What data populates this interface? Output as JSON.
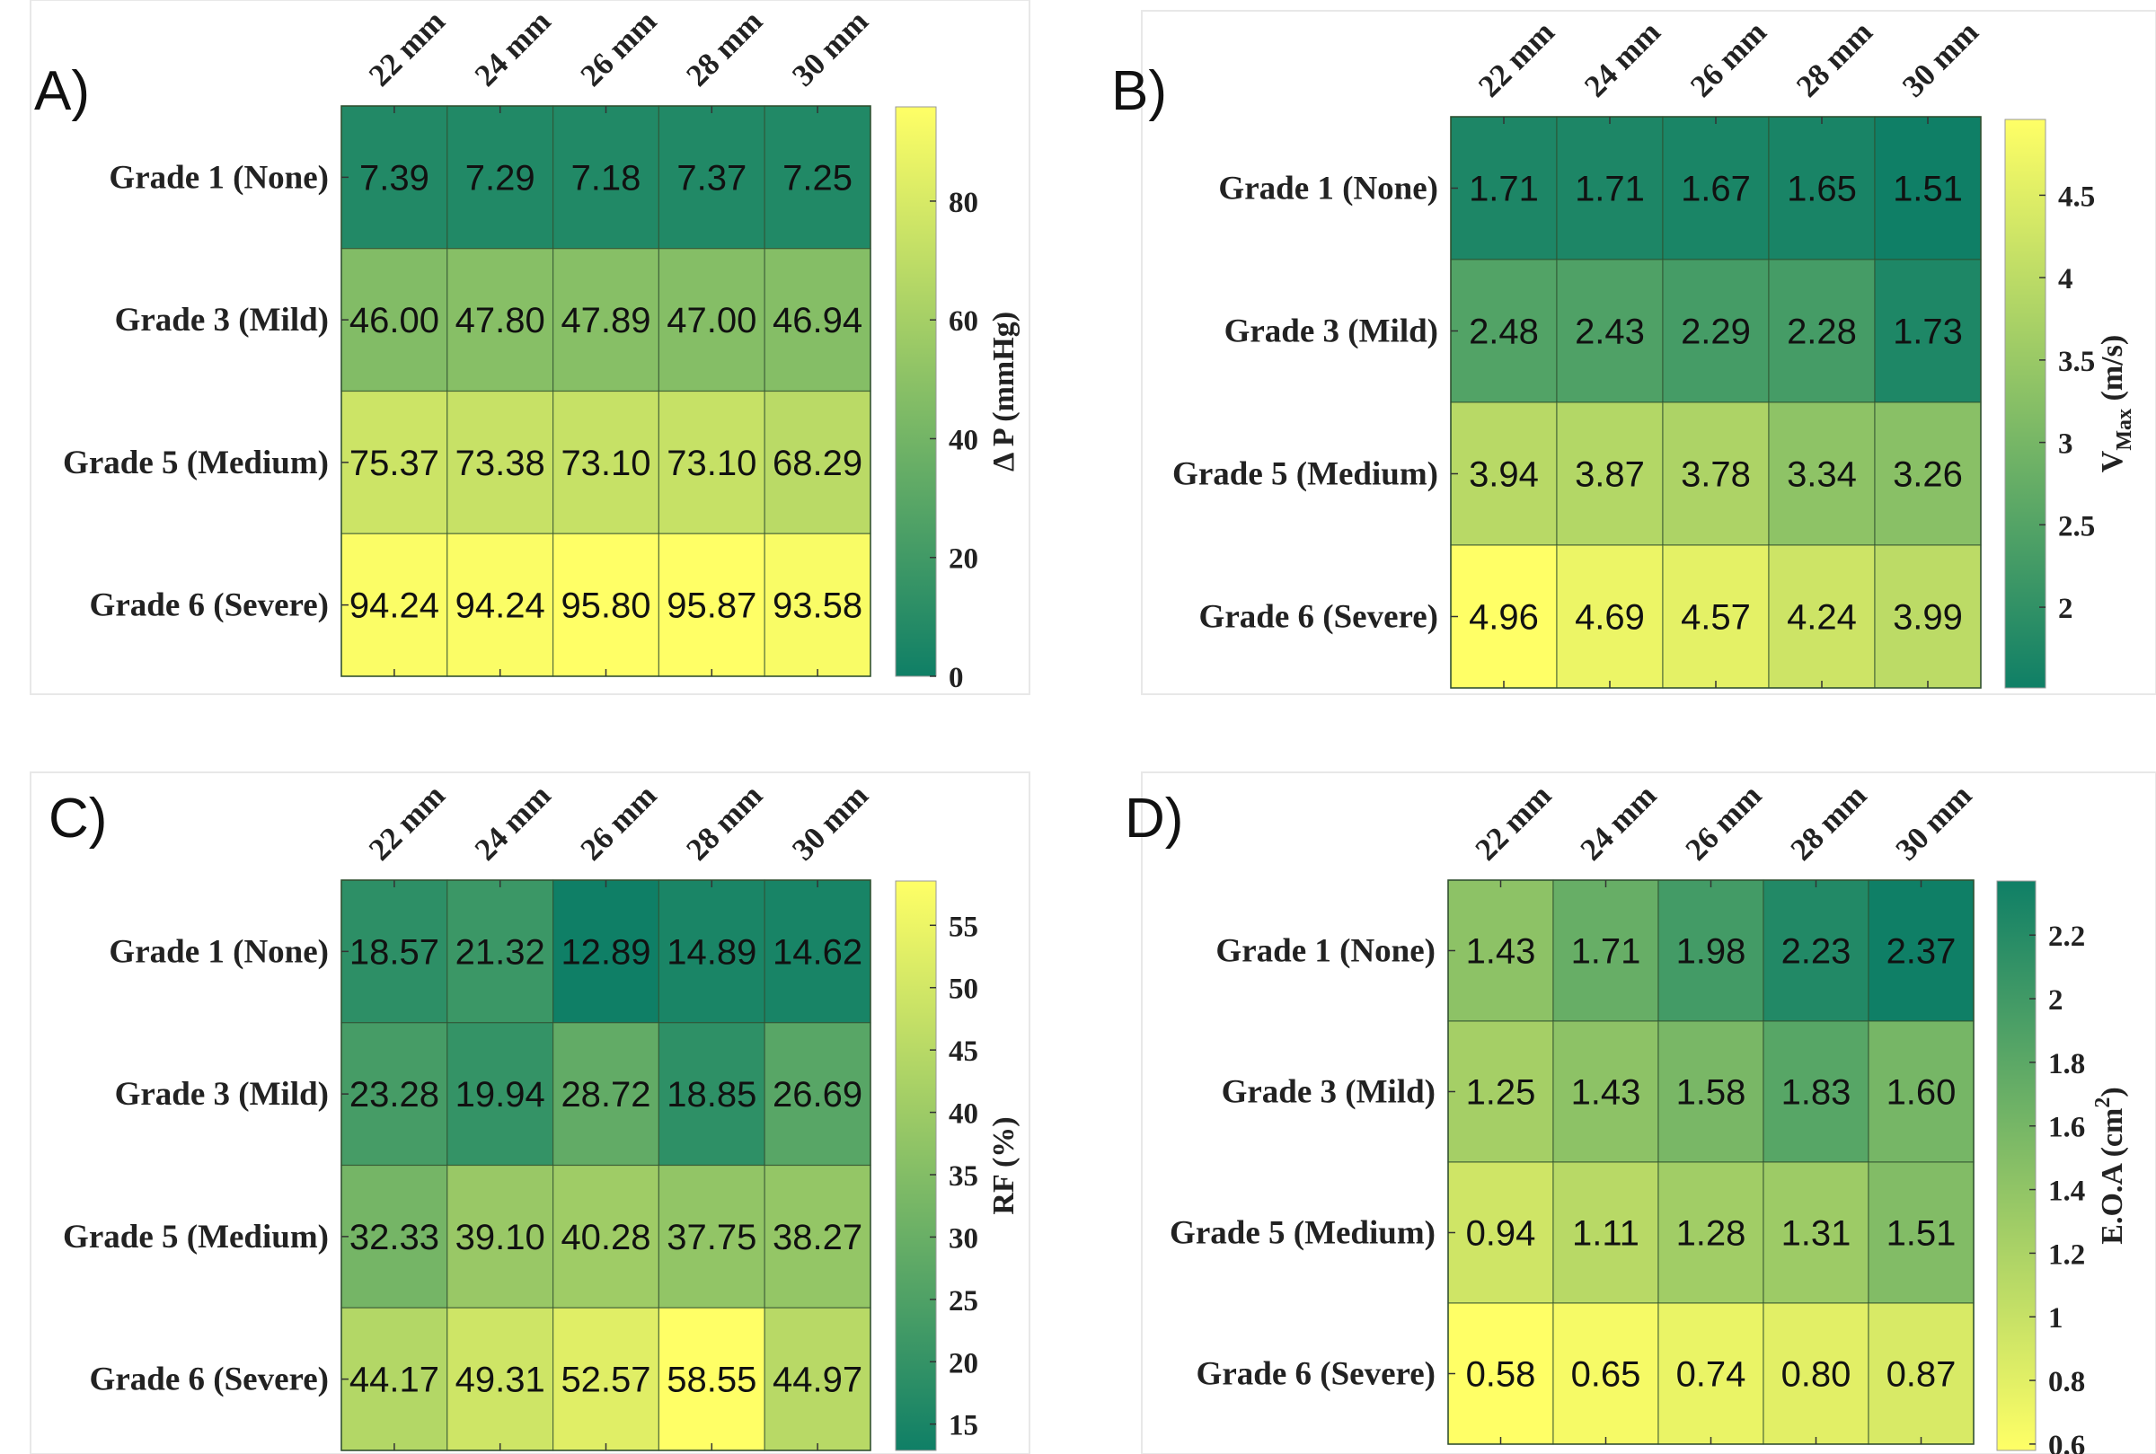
{
  "colors": {
    "low_green": "#0f7f66",
    "high_yellow": "#ffff66",
    "grid": "#3a5a3a"
  },
  "chart_data": [
    {
      "type": "heatmap",
      "panel_label": "A)",
      "columns": [
        "22 mm",
        "24 mm",
        "26 mm",
        "28 mm",
        "30 mm"
      ],
      "rows": [
        "Grade 1 (None)",
        "Grade 3 (Mild)",
        "Grade 5 (Medium)",
        "Grade 6 (Severe)"
      ],
      "values": [
        [
          "7.39",
          "7.29",
          "7.18",
          "7.37",
          "7.25"
        ],
        [
          "46.00",
          "47.80",
          "47.89",
          "47.00",
          "46.94"
        ],
        [
          "75.37",
          "73.38",
          "73.10",
          "73.10",
          "68.29"
        ],
        [
          "94.24",
          "94.24",
          "95.80",
          "95.87",
          "93.58"
        ]
      ],
      "colorbar": {
        "label": [
          "Δ P (mmHg)"
        ],
        "ticks": [
          "0",
          "20",
          "40",
          "60",
          "80"
        ],
        "range": [
          0,
          95.87
        ],
        "colormap": "summer (low green → high yellow)"
      }
    },
    {
      "type": "heatmap",
      "panel_label": "B)",
      "columns": [
        "22 mm",
        "24 mm",
        "26 mm",
        "28 mm",
        "30 mm"
      ],
      "rows": [
        "Grade 1 (None)",
        "Grade 3 (Mild)",
        "Grade 5 (Medium)",
        "Grade 6 (Severe)"
      ],
      "values": [
        [
          "1.71",
          "1.71",
          "1.67",
          "1.65",
          "1.51"
        ],
        [
          "2.48",
          "2.43",
          "2.29",
          "2.28",
          "1.73"
        ],
        [
          "3.94",
          "3.87",
          "3.78",
          "3.34",
          "3.26"
        ],
        [
          "4.96",
          "4.69",
          "4.57",
          "4.24",
          "3.99"
        ]
      ],
      "colorbar": {
        "label": [
          "V",
          "Max",
          " (m/s)"
        ],
        "ticks": [
          "2",
          "2.5",
          "3",
          "3.5",
          "4",
          "4.5"
        ],
        "range": [
          1.51,
          4.96
        ],
        "colormap": "summer (low green → high yellow)"
      }
    },
    {
      "type": "heatmap",
      "panel_label": "C)",
      "columns": [
        "22 mm",
        "24 mm",
        "26 mm",
        "28 mm",
        "30 mm"
      ],
      "rows": [
        "Grade 1 (None)",
        "Grade 3 (Mild)",
        "Grade 5 (Medium)",
        "Grade 6 (Severe)"
      ],
      "values": [
        [
          "18.57",
          "21.32",
          "12.89",
          "14.89",
          "14.62"
        ],
        [
          "23.28",
          "19.94",
          "28.72",
          "18.85",
          "26.69"
        ],
        [
          "32.33",
          "39.10",
          "40.28",
          "37.75",
          "38.27"
        ],
        [
          "44.17",
          "49.31",
          "52.57",
          "58.55",
          "44.97"
        ]
      ],
      "colorbar": {
        "label": [
          "RF (%)"
        ],
        "ticks": [
          "15",
          "20",
          "25",
          "30",
          "35",
          "40",
          "45",
          "50",
          "55"
        ],
        "range": [
          12.89,
          58.55
        ],
        "colormap": "summer (low green → high yellow)"
      }
    },
    {
      "type": "heatmap",
      "panel_label": "D)",
      "columns": [
        "22 mm",
        "24 mm",
        "26 mm",
        "28 mm",
        "30 mm"
      ],
      "rows": [
        "Grade 1 (None)",
        "Grade 3 (Mild)",
        "Grade 5 (Medium)",
        "Grade 6 (Severe)"
      ],
      "values": [
        [
          "1.43",
          "1.71",
          "1.98",
          "2.23",
          "2.37"
        ],
        [
          "1.25",
          "1.43",
          "1.58",
          "1.83",
          "1.60"
        ],
        [
          "0.94",
          "1.11",
          "1.28",
          "1.31",
          "1.51"
        ],
        [
          "0.58",
          "0.65",
          "0.74",
          "0.80",
          "0.87"
        ]
      ],
      "colorbar": {
        "label": [
          "E.O.A (cm",
          "2",
          ")"
        ],
        "ticks": [
          "0.6",
          "0.8",
          "1",
          "1.2",
          "1.4",
          "1.6",
          "1.8",
          "2",
          "2.2"
        ],
        "range": [
          0.58,
          2.37
        ],
        "colormap": "summer reversed (low yellow → high green)",
        "reversed": true
      }
    }
  ]
}
